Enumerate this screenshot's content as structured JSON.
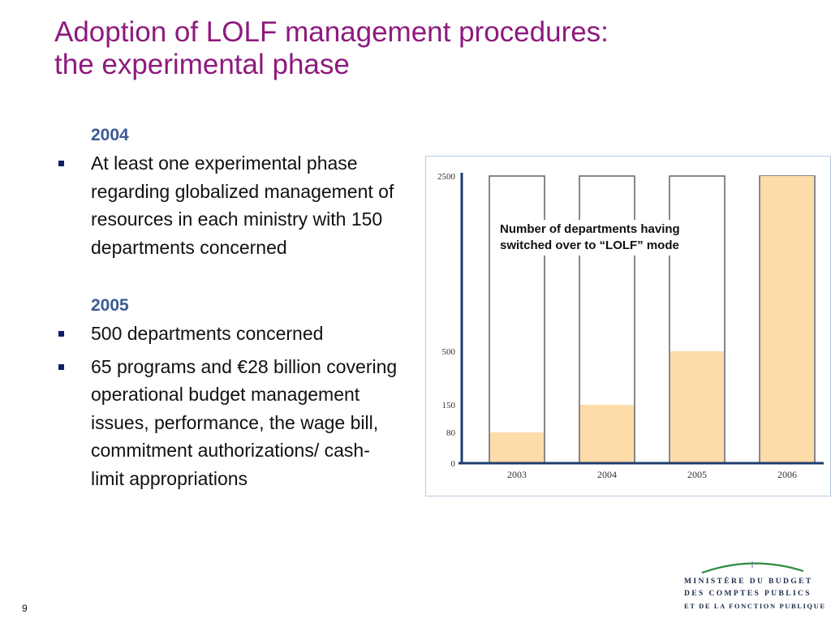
{
  "slide": {
    "title_line1": "Adoption of LOLF management procedures:",
    "title_line2": "the experimental phase",
    "page_number": "9"
  },
  "content": {
    "section_2004": {
      "year": "2004",
      "bullets": [
        "At least one experimental phase regarding globalized management of resources in each ministry with 150 departments concerned"
      ]
    },
    "section_2005": {
      "year": "2005",
      "bullets": [
        "500 departments concerned",
        "65 programs and €28 billion covering operational budget management issues, performance, the wage bill, commitment authorizations/ cash-limit appropriations"
      ]
    }
  },
  "chart_data": {
    "type": "bar",
    "categories": [
      "2003",
      "2004",
      "2005",
      "2006"
    ],
    "values": [
      80,
      150,
      500,
      2500
    ],
    "y_ticks": [
      "0",
      "80",
      "150",
      "500",
      "2500"
    ],
    "annotation": "Number of departments having switched over to “LOLF” mode",
    "bar_fill_color": "#fddcaa",
    "bar_outline_color": "#6b6b6b",
    "axis_color": "#1f3d6e",
    "grid": false,
    "title": "",
    "xlabel": "",
    "ylabel": ""
  },
  "logo": {
    "line1": "MINISTÈRE DU BUDGET",
    "line2": "DES COMPTES PUBLICS",
    "line3": "ET DE LA FONCTION PUBLIQUE",
    "color": "#2e8a3c"
  }
}
